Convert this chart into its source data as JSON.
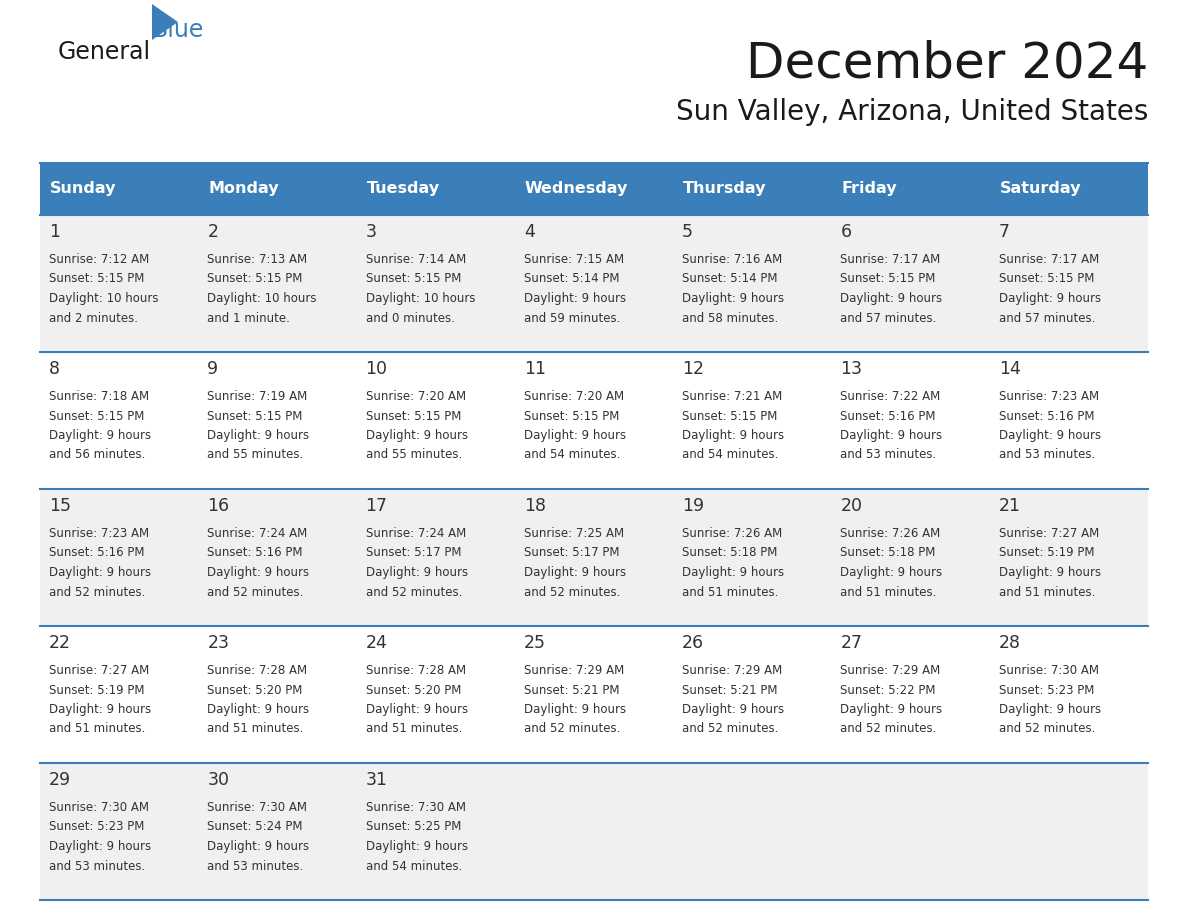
{
  "title": "December 2024",
  "subtitle": "Sun Valley, Arizona, United States",
  "header_color": "#3a7fba",
  "header_text_color": "#ffffff",
  "row_bg_odd": "#f0f0f0",
  "row_bg_even": "#ffffff",
  "grid_color": "#3a7fba",
  "text_color": "#333333",
  "days_of_week": [
    "Sunday",
    "Monday",
    "Tuesday",
    "Wednesday",
    "Thursday",
    "Friday",
    "Saturday"
  ],
  "weeks": [
    [
      {
        "day": "1",
        "sunrise": "7:12 AM",
        "sunset": "5:15 PM",
        "daylight1": "10 hours",
        "daylight2": "and 2 minutes."
      },
      {
        "day": "2",
        "sunrise": "7:13 AM",
        "sunset": "5:15 PM",
        "daylight1": "10 hours",
        "daylight2": "and 1 minute."
      },
      {
        "day": "3",
        "sunrise": "7:14 AM",
        "sunset": "5:15 PM",
        "daylight1": "10 hours",
        "daylight2": "and 0 minutes."
      },
      {
        "day": "4",
        "sunrise": "7:15 AM",
        "sunset": "5:14 PM",
        "daylight1": "9 hours",
        "daylight2": "and 59 minutes."
      },
      {
        "day": "5",
        "sunrise": "7:16 AM",
        "sunset": "5:14 PM",
        "daylight1": "9 hours",
        "daylight2": "and 58 minutes."
      },
      {
        "day": "6",
        "sunrise": "7:17 AM",
        "sunset": "5:15 PM",
        "daylight1": "9 hours",
        "daylight2": "and 57 minutes."
      },
      {
        "day": "7",
        "sunrise": "7:17 AM",
        "sunset": "5:15 PM",
        "daylight1": "9 hours",
        "daylight2": "and 57 minutes."
      }
    ],
    [
      {
        "day": "8",
        "sunrise": "7:18 AM",
        "sunset": "5:15 PM",
        "daylight1": "9 hours",
        "daylight2": "and 56 minutes."
      },
      {
        "day": "9",
        "sunrise": "7:19 AM",
        "sunset": "5:15 PM",
        "daylight1": "9 hours",
        "daylight2": "and 55 minutes."
      },
      {
        "day": "10",
        "sunrise": "7:20 AM",
        "sunset": "5:15 PM",
        "daylight1": "9 hours",
        "daylight2": "and 55 minutes."
      },
      {
        "day": "11",
        "sunrise": "7:20 AM",
        "sunset": "5:15 PM",
        "daylight1": "9 hours",
        "daylight2": "and 54 minutes."
      },
      {
        "day": "12",
        "sunrise": "7:21 AM",
        "sunset": "5:15 PM",
        "daylight1": "9 hours",
        "daylight2": "and 54 minutes."
      },
      {
        "day": "13",
        "sunrise": "7:22 AM",
        "sunset": "5:16 PM",
        "daylight1": "9 hours",
        "daylight2": "and 53 minutes."
      },
      {
        "day": "14",
        "sunrise": "7:23 AM",
        "sunset": "5:16 PM",
        "daylight1": "9 hours",
        "daylight2": "and 53 minutes."
      }
    ],
    [
      {
        "day": "15",
        "sunrise": "7:23 AM",
        "sunset": "5:16 PM",
        "daylight1": "9 hours",
        "daylight2": "and 52 minutes."
      },
      {
        "day": "16",
        "sunrise": "7:24 AM",
        "sunset": "5:16 PM",
        "daylight1": "9 hours",
        "daylight2": "and 52 minutes."
      },
      {
        "day": "17",
        "sunrise": "7:24 AM",
        "sunset": "5:17 PM",
        "daylight1": "9 hours",
        "daylight2": "and 52 minutes."
      },
      {
        "day": "18",
        "sunrise": "7:25 AM",
        "sunset": "5:17 PM",
        "daylight1": "9 hours",
        "daylight2": "and 52 minutes."
      },
      {
        "day": "19",
        "sunrise": "7:26 AM",
        "sunset": "5:18 PM",
        "daylight1": "9 hours",
        "daylight2": "and 51 minutes."
      },
      {
        "day": "20",
        "sunrise": "7:26 AM",
        "sunset": "5:18 PM",
        "daylight1": "9 hours",
        "daylight2": "and 51 minutes."
      },
      {
        "day": "21",
        "sunrise": "7:27 AM",
        "sunset": "5:19 PM",
        "daylight1": "9 hours",
        "daylight2": "and 51 minutes."
      }
    ],
    [
      {
        "day": "22",
        "sunrise": "7:27 AM",
        "sunset": "5:19 PM",
        "daylight1": "9 hours",
        "daylight2": "and 51 minutes."
      },
      {
        "day": "23",
        "sunrise": "7:28 AM",
        "sunset": "5:20 PM",
        "daylight1": "9 hours",
        "daylight2": "and 51 minutes."
      },
      {
        "day": "24",
        "sunrise": "7:28 AM",
        "sunset": "5:20 PM",
        "daylight1": "9 hours",
        "daylight2": "and 51 minutes."
      },
      {
        "day": "25",
        "sunrise": "7:29 AM",
        "sunset": "5:21 PM",
        "daylight1": "9 hours",
        "daylight2": "and 52 minutes."
      },
      {
        "day": "26",
        "sunrise": "7:29 AM",
        "sunset": "5:21 PM",
        "daylight1": "9 hours",
        "daylight2": "and 52 minutes."
      },
      {
        "day": "27",
        "sunrise": "7:29 AM",
        "sunset": "5:22 PM",
        "daylight1": "9 hours",
        "daylight2": "and 52 minutes."
      },
      {
        "day": "28",
        "sunrise": "7:30 AM",
        "sunset": "5:23 PM",
        "daylight1": "9 hours",
        "daylight2": "and 52 minutes."
      }
    ],
    [
      {
        "day": "29",
        "sunrise": "7:30 AM",
        "sunset": "5:23 PM",
        "daylight1": "9 hours",
        "daylight2": "and 53 minutes."
      },
      {
        "day": "30",
        "sunrise": "7:30 AM",
        "sunset": "5:24 PM",
        "daylight1": "9 hours",
        "daylight2": "and 53 minutes."
      },
      {
        "day": "31",
        "sunrise": "7:30 AM",
        "sunset": "5:25 PM",
        "daylight1": "9 hours",
        "daylight2": "and 54 minutes."
      },
      null,
      null,
      null,
      null
    ]
  ],
  "logo_general_color": "#1a1a1a",
  "logo_blue_color": "#3a7fba"
}
